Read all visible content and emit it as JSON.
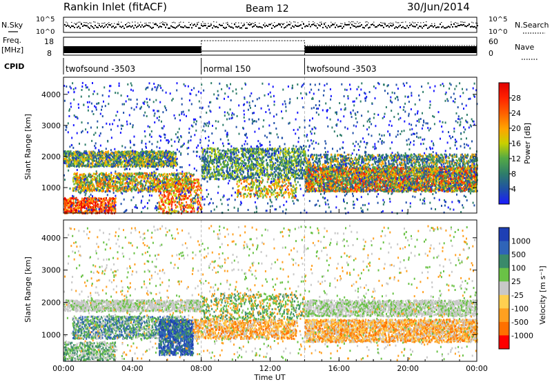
{
  "header": {
    "title": "Rankin Inlet (fitACF)",
    "beam": "Beam 12",
    "date": "30/Jun/2014"
  },
  "top_panels": {
    "nsky_label": "N.Sky",
    "nsearch_label": "N.Search",
    "freq_label": "Freq.",
    "freq_unit": "[MHz]",
    "nave_label": "Nave",
    "cpid_label": "CPID",
    "nsky_ticks_left": [
      "10^5",
      "10^0"
    ],
    "nsky_ticks_right": [
      "10^5",
      "10^0"
    ],
    "freq_ticks": [
      "18",
      "8"
    ],
    "nave_ticks": [
      "60",
      "0"
    ]
  },
  "cpid_segments": [
    {
      "label": "twofsound -3503",
      "start_hour": 0,
      "end_hour": 8
    },
    {
      "label": "normal 150",
      "start_hour": 8,
      "end_hour": 14
    },
    {
      "label": "twofsound -3503",
      "start_hour": 14,
      "end_hour": 24
    }
  ],
  "axes": {
    "ylabel": "Slant Range [km]",
    "xlabel": "Time UT",
    "yticks": [
      "1000",
      "2000",
      "3000",
      "4000"
    ],
    "xticks": [
      "00:00",
      "04:00",
      "08:00",
      "12:00",
      "16:00",
      "20:00",
      "00:00"
    ]
  },
  "power_colorbar": {
    "label": "Power [dB]",
    "ticks": [
      "4",
      "8",
      "12",
      "16",
      "20",
      "24",
      "28"
    ],
    "colors": [
      "#1a1aff",
      "#1f4fa8",
      "#2e7d6a",
      "#55aa44",
      "#c8d000",
      "#ffa500",
      "#ff6000",
      "#ff2000",
      "#e00000"
    ]
  },
  "velocity_colorbar": {
    "label": "Velocity [m s⁻¹]",
    "ticks": [
      "1000",
      "500",
      "100",
      "25",
      "-25",
      "-100",
      "-500",
      "-1000"
    ],
    "colors": [
      "#1e3fb4",
      "#2f64b8",
      "#3a8a6a",
      "#6ac246",
      "#c8c8c8",
      "#ffd050",
      "#ffa020",
      "#ff7000",
      "#ff0000"
    ]
  },
  "chart_data": {
    "type": "heatmap",
    "x_range_hours": [
      0,
      24
    ],
    "y_range_km": [
      180,
      4550
    ],
    "mode_change_hours": [
      8,
      14
    ]
  }
}
